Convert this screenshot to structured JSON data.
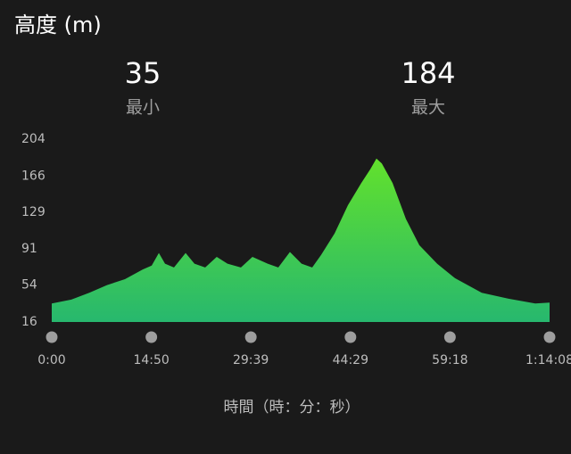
{
  "title": "高度 (m)",
  "stats": [
    {
      "value": 35,
      "label": "最小"
    },
    {
      "value": 184,
      "label": "最大"
    }
  ],
  "chart_data": {
    "type": "area",
    "x_label": "時間（時：分：秒）",
    "color_bottom": "#27b86e",
    "color_top": "#62e12c",
    "x": [
      0,
      175,
      335,
      494,
      654,
      813,
      893,
      957,
      1012,
      1092,
      1196,
      1275,
      1371,
      1474,
      1570,
      1690,
      1793,
      1929,
      2024,
      2128,
      2232,
      2327,
      2407,
      2527,
      2646,
      2766,
      2846,
      2901,
      2949,
      3045,
      3164,
      3284,
      3443,
      3603,
      3842,
      4081,
      4320,
      4448
    ],
    "values": [
      35,
      39,
      46,
      54,
      60,
      70,
      74,
      87,
      76,
      72,
      87,
      76,
      72,
      83,
      76,
      72,
      83,
      76,
      72,
      88,
      76,
      72,
      85,
      107,
      136,
      159,
      173,
      184,
      179,
      159,
      122,
      95,
      76,
      61,
      46,
      40,
      35,
      36
    ],
    "xlim": [
      0,
      4448
    ],
    "xticks": [
      {
        "value": 0,
        "label": "0:00"
      },
      {
        "value": 890,
        "label": "14:50"
      },
      {
        "value": 1779,
        "label": "29:39"
      },
      {
        "value": 2669,
        "label": "44:29"
      },
      {
        "value": 3558,
        "label": "59:18"
      },
      {
        "value": 4448,
        "label": "1:14:08"
      }
    ],
    "ylim": [
      16,
      204
    ],
    "yticks": [
      16,
      54,
      91,
      129,
      166,
      204
    ]
  }
}
